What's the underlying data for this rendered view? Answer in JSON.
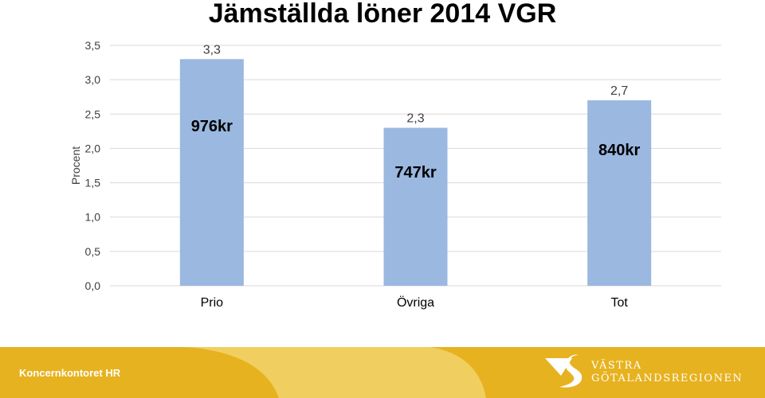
{
  "chart_data": {
    "type": "bar",
    "title": "Jämställda löner 2014 VGR",
    "ylabel": "Procent",
    "xlabel": "",
    "categories": [
      "Prio",
      "Övriga",
      "Tot"
    ],
    "values": [
      3.3,
      2.3,
      2.7
    ],
    "value_labels": [
      "3,3",
      "2,3",
      "2,7"
    ],
    "annotations": [
      "976kr",
      "747kr",
      "840kr"
    ],
    "yticks": [
      0,
      0.5,
      1.0,
      1.5,
      2.0,
      2.5,
      3.0,
      3.5
    ],
    "ytick_labels": [
      "0,0",
      "0,5",
      "1,0",
      "1,5",
      "2,0",
      "2,5",
      "3,0",
      "3,5"
    ],
    "ylim": [
      0,
      3.5
    ],
    "grid": true,
    "legend": "none",
    "colors": {
      "bar": "#9ab8e0",
      "grid": "#d9d9d9"
    }
  },
  "footer": {
    "department": "Koncernkontoret HR",
    "logo_line1": "VÄSTRA",
    "logo_line2": "GÖTALANDSREGIONEN",
    "logo_icon": "vgr-swan-logo",
    "colors": {
      "primary": "#e7b21f",
      "light": "#f0cf60",
      "text": "#ffffff"
    }
  }
}
